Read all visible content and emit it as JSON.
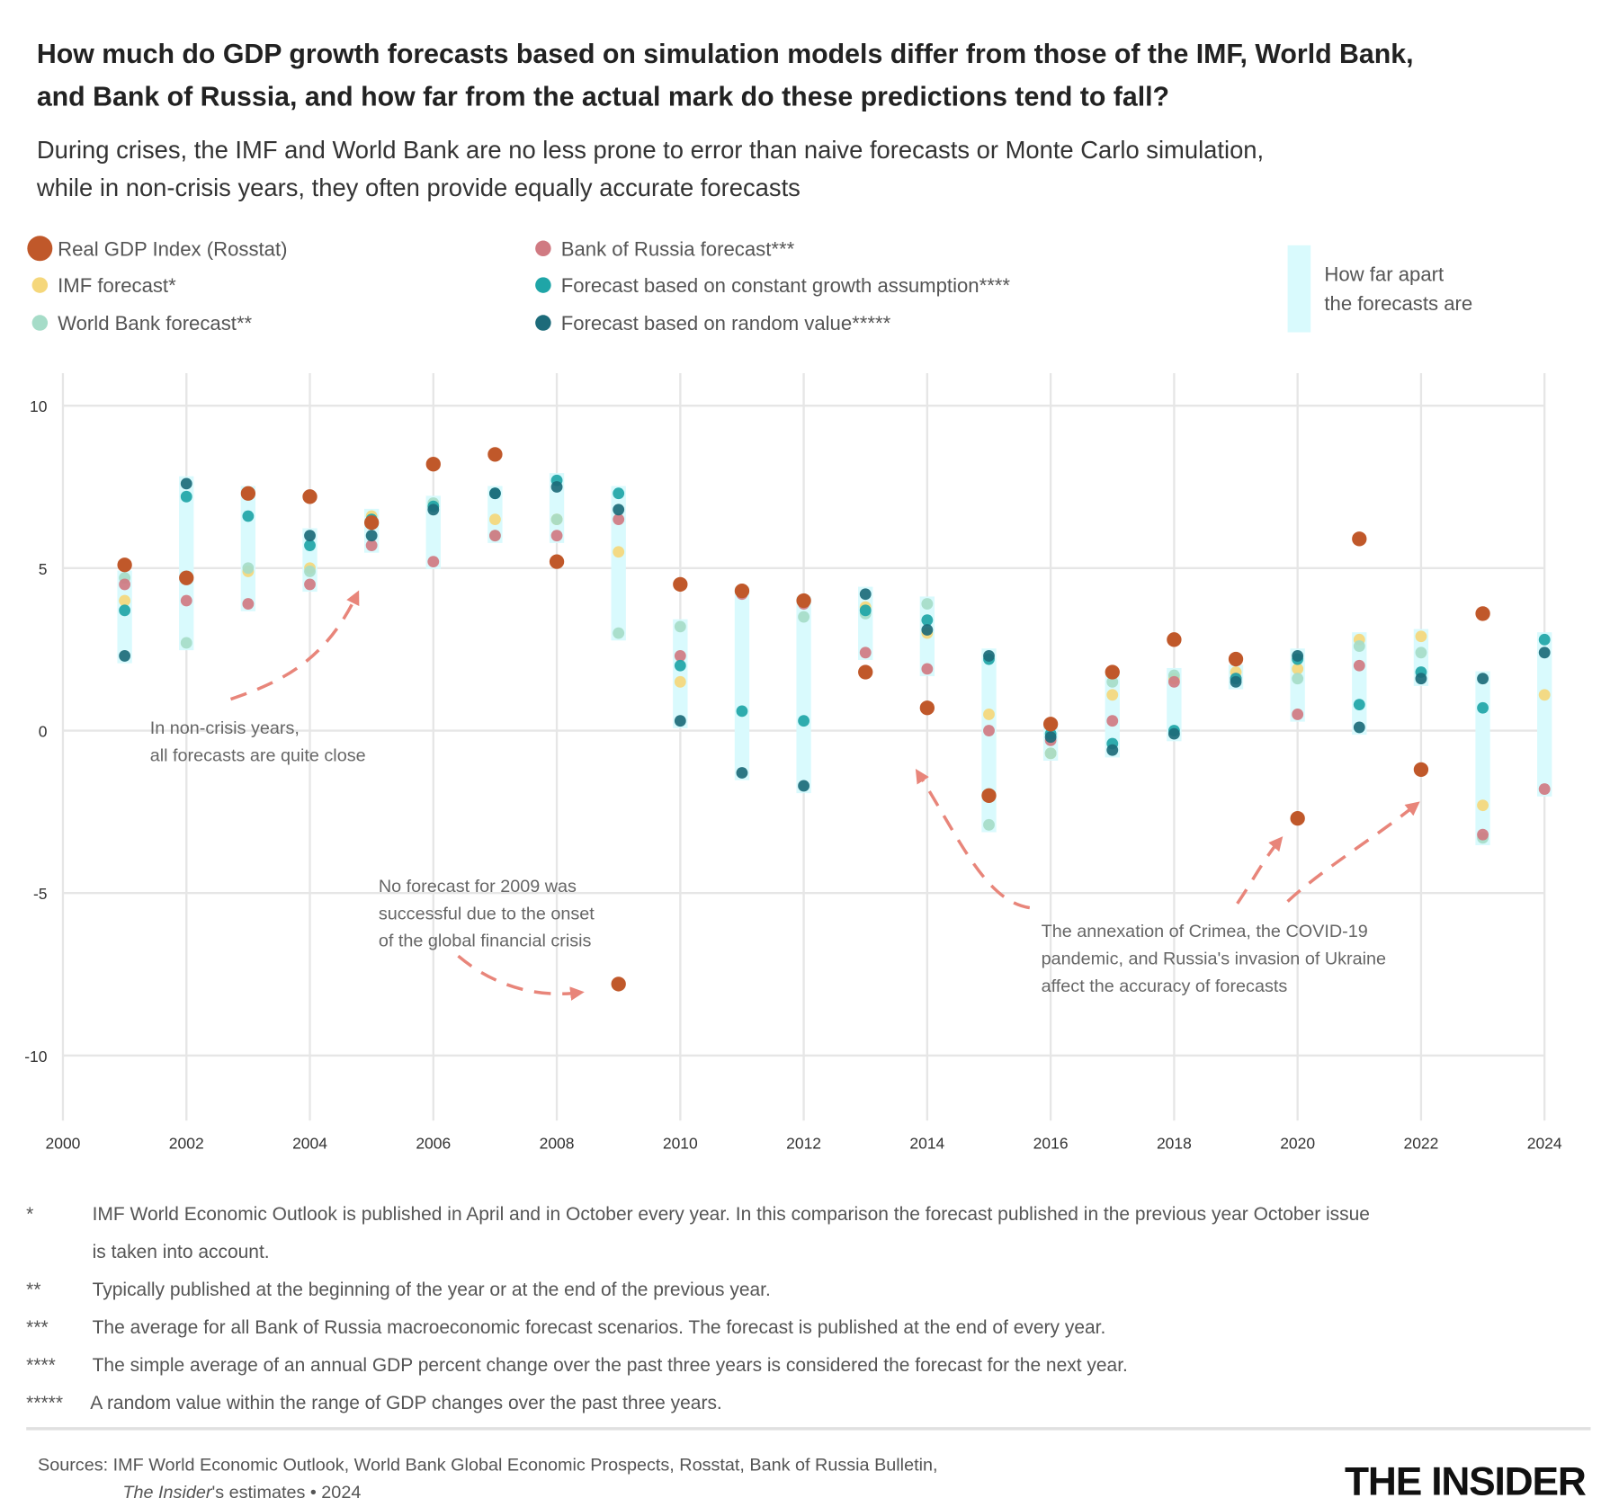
{
  "chart_data": {
    "type": "scatter",
    "title": [
      "How much do GDP growth forecasts based on simulation models differ from those of the IMF, World Bank,",
      "and Bank of Russia, and how far from the actual mark do these predictions tend to fall?"
    ],
    "subtitle": [
      "During crises, the IMF and World Bank are no less prone to error than naive forecasts or  Monte Carlo simulation,",
      "while in non-crisis years, they often provide equally accurate forecasts"
    ],
    "x": [
      2001,
      2002,
      2003,
      2004,
      2005,
      2006,
      2007,
      2008,
      2009,
      2010,
      2011,
      2012,
      2013,
      2014,
      2015,
      2016,
      2017,
      2018,
      2019,
      2020,
      2021,
      2022,
      2023,
      2024
    ],
    "series": [
      {
        "name": "Real GDP Index (Rosstat)",
        "color": "#c0582a",
        "values": [
          5.1,
          4.7,
          7.3,
          7.2,
          6.4,
          8.2,
          8.5,
          5.2,
          -7.8,
          4.5,
          4.3,
          4.0,
          1.8,
          0.7,
          -2.0,
          0.2,
          1.8,
          2.8,
          2.2,
          -2.7,
          5.9,
          -1.2,
          3.6,
          null
        ]
      },
      {
        "name": "IMF forecast*",
        "color": "#f5d77b",
        "values": [
          4.0,
          null,
          4.9,
          5.0,
          6.6,
          6.9,
          6.5,
          6.5,
          5.5,
          1.5,
          null,
          null,
          3.8,
          3.0,
          0.5,
          -0.7,
          1.1,
          1.6,
          1.8,
          1.9,
          2.8,
          2.9,
          -2.3,
          1.1
        ]
      },
      {
        "name": "World Bank forecast**",
        "color": "#a6dcc8",
        "values": [
          4.7,
          2.7,
          5.0,
          4.9,
          6.5,
          7.0,
          6.0,
          6.5,
          3.0,
          3.2,
          null,
          3.5,
          3.6,
          3.9,
          -2.9,
          -0.7,
          1.5,
          1.7,
          1.6,
          1.6,
          2.6,
          2.4,
          -3.3,
          null
        ]
      },
      {
        "name": "Bank of Russia forecast***",
        "color": "#d07a82",
        "values": [
          4.5,
          4.0,
          3.9,
          4.5,
          5.7,
          5.2,
          6.0,
          6.0,
          6.5,
          2.3,
          4.2,
          3.9,
          2.4,
          1.9,
          0.0,
          -0.3,
          0.3,
          1.5,
          1.6,
          0.5,
          2.0,
          null,
          -3.2,
          -1.8
        ]
      },
      {
        "name": "Forecast based on constant growth assumption****",
        "color": "#1fa5a7",
        "values": [
          3.7,
          7.2,
          6.6,
          5.7,
          6.5,
          6.9,
          7.3,
          7.7,
          7.3,
          2.0,
          0.6,
          0.3,
          3.7,
          3.4,
          2.2,
          -0.1,
          -0.4,
          0.0,
          1.6,
          2.2,
          0.8,
          1.8,
          0.7,
          2.8
        ]
      },
      {
        "name": "Forecast based on random value*****",
        "color": "#1d6b7a",
        "values": [
          2.3,
          7.6,
          7.3,
          6.0,
          6.0,
          6.8,
          7.3,
          7.5,
          6.8,
          0.3,
          -1.3,
          -1.7,
          4.2,
          3.1,
          2.3,
          -0.2,
          -0.6,
          -0.1,
          1.5,
          2.3,
          0.1,
          1.6,
          1.6,
          2.4
        ]
      }
    ],
    "band_label": [
      "How far apart",
      "the forecasts are"
    ],
    "band_color": "#d9fafd",
    "xlim": [
      2000,
      2024
    ],
    "xticks": [
      2000,
      2002,
      2004,
      2006,
      2008,
      2010,
      2012,
      2014,
      2016,
      2018,
      2020,
      2022,
      2024
    ],
    "ylim": [
      -12,
      11
    ],
    "yticks": [
      10,
      5,
      0,
      -5,
      -10
    ],
    "grid": true,
    "annotations": [
      [
        "In non-crisis years,",
        "all forecasts are quite close"
      ],
      [
        "No forecast for 2009 was",
        "successful due to the onset",
        "of the global financial crisis"
      ],
      [
        "The annexation of Crimea, the COVID-19",
        "pandemic, and Russia's invasion of Ukraine",
        "affect the accuracy of forecasts"
      ]
    ]
  },
  "footnotes": [
    {
      "mark": "*",
      "lines": [
        "IMF World Economic Outlook is published in April and in October every year. In this comparison the forecast published in the previous year October issue",
        "is taken into account."
      ]
    },
    {
      "mark": "**",
      "lines": [
        "Typically published at the beginning of the year or at the end of the previous year."
      ]
    },
    {
      "mark": "***",
      "lines": [
        "The average for all Bank of Russia macroeconomic forecast scenarios. The forecast is published at the end of every year."
      ]
    },
    {
      "mark": "****",
      "lines": [
        "The simple average of an annual GDP percent change over the past three years is considered the forecast for the next year."
      ]
    },
    {
      "mark": "*****",
      "lines": [
        "A random value within the range of GDP changes over the past three years."
      ]
    }
  ],
  "source": {
    "line1": "Sources: IMF World Economic Outlook, World Bank Global Economic Prospects, Rosstat, Bank of Russia Bulletin,",
    "line2_italic": "The Insider",
    "line2_rest": "'s estimates • 2024"
  },
  "logo": "THE INSIDER"
}
